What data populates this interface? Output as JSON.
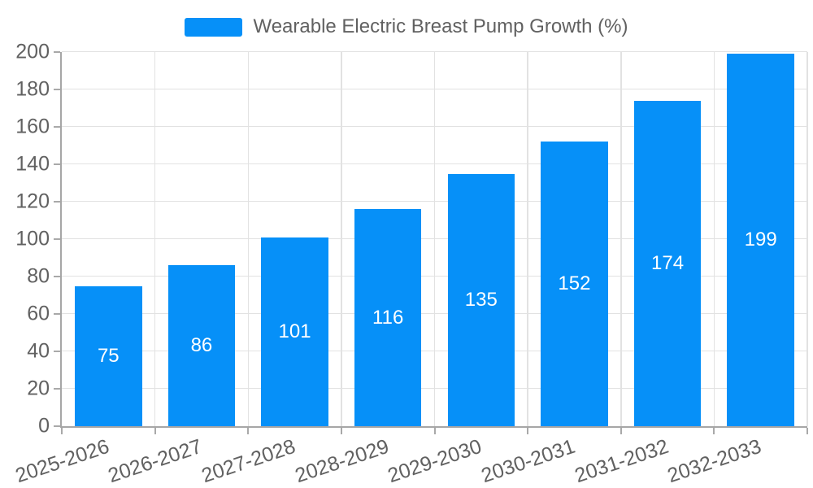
{
  "legend": {
    "label": "Wearable Electric Breast Pump Growth (%)"
  },
  "chart_data": {
    "type": "bar",
    "title": "",
    "series_name": "Wearable Electric Breast Pump Growth (%)",
    "categories": [
      "2025-2026",
      "2026-2027",
      "2027-2028",
      "2028-2029",
      "2029-2030",
      "2030-2031",
      "2031-2032",
      "2032-2033"
    ],
    "values": [
      75,
      86,
      101,
      116,
      135,
      152,
      174,
      199
    ],
    "xlabel": "",
    "ylabel": "",
    "ylim": [
      0,
      200
    ],
    "ytick_step": 20,
    "ytick_labels": [
      "0",
      "20",
      "40",
      "60",
      "80",
      "100",
      "120",
      "140",
      "160",
      "180",
      "200"
    ],
    "grid": true,
    "legend_position": "top-center",
    "value_labels": "inside-center",
    "x_tick_rotation_deg": -18.5,
    "bar_color": "#0690F8",
    "value_label_color": "#ffffff"
  },
  "colors": {
    "bar": "#0690F8",
    "grid": "#e2e2e2",
    "axis": "#a6a6a6",
    "tick": "#a9a9a9",
    "label_text": "#616161",
    "value_text": "#ffffff",
    "background": "#ffffff"
  }
}
